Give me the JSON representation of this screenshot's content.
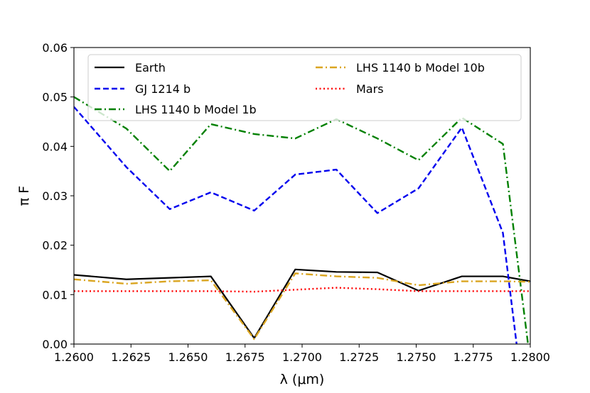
{
  "chart_data": {
    "type": "line",
    "xlabel": "λ (μm)",
    "ylabel": "π F",
    "xlim": [
      1.26,
      1.28
    ],
    "ylim": [
      0,
      0.06
    ],
    "xticks": [
      "1.2600",
      "1.2625",
      "1.2650",
      "1.2675",
      "1.2700",
      "1.2725",
      "1.2750",
      "1.2775",
      "1.2800"
    ],
    "yticks": [
      "0.00",
      "0.01",
      "0.02",
      "0.03",
      "0.04",
      "0.05",
      "0.06"
    ],
    "grid": false,
    "legend_position": "top",
    "x": [
      1.26,
      1.2623,
      1.2642,
      1.266,
      1.2679,
      1.2697,
      1.2715,
      1.2733,
      1.2751,
      1.277,
      1.2788,
      1.28
    ],
    "series": [
      {
        "name": "Earth",
        "color": "#000000",
        "style": "solid",
        "x": [
          1.26,
          1.2623,
          1.2642,
          1.266,
          1.2679,
          1.2697,
          1.2715,
          1.2733,
          1.2751,
          1.277,
          1.2788,
          1.28
        ],
        "values": [
          0.014,
          0.0131,
          0.0134,
          0.0137,
          0.0012,
          0.0151,
          0.0146,
          0.0145,
          0.0108,
          0.0137,
          0.0137,
          0.0127
        ]
      },
      {
        "name": "GJ 1214 b",
        "color": "#0000ee",
        "style": "dashed",
        "x": [
          1.26,
          1.2623,
          1.2642,
          1.266,
          1.2679,
          1.2697,
          1.2715,
          1.2733,
          1.2751,
          1.277,
          1.2788,
          1.2794
        ],
        "values": [
          0.048,
          0.0358,
          0.0273,
          0.0307,
          0.027,
          0.0343,
          0.0353,
          0.0265,
          0.0315,
          0.0438,
          0.0225,
          0.0
        ]
      },
      {
        "name": "LHS 1140 b Model 1b",
        "color": "#008000",
        "style": "dashdot",
        "x": [
          1.26,
          1.2623,
          1.2642,
          1.266,
          1.2679,
          1.2697,
          1.2715,
          1.2733,
          1.2751,
          1.277,
          1.2788,
          1.2799
        ],
        "values": [
          0.05,
          0.0436,
          0.035,
          0.0445,
          0.0425,
          0.0416,
          0.0455,
          0.0416,
          0.0372,
          0.0458,
          0.0405,
          0.0
        ]
      },
      {
        "name": "LHS 1140 b Model 10b",
        "color": "#daa520",
        "style": "dashdot",
        "x": [
          1.26,
          1.2623,
          1.2642,
          1.266,
          1.2679,
          1.2697,
          1.2715,
          1.2733,
          1.2751,
          1.277,
          1.2788,
          1.28
        ],
        "values": [
          0.0131,
          0.0122,
          0.0127,
          0.0129,
          0.001,
          0.0143,
          0.0137,
          0.0134,
          0.0119,
          0.0127,
          0.0127,
          0.0126
        ]
      },
      {
        "name": "Mars",
        "color": "#ff0000",
        "style": "dotted",
        "x": [
          1.26,
          1.2623,
          1.2642,
          1.266,
          1.2679,
          1.2697,
          1.2715,
          1.2733,
          1.2751,
          1.277,
          1.2788,
          1.28
        ],
        "values": [
          0.0107,
          0.0107,
          0.0107,
          0.0107,
          0.0106,
          0.011,
          0.0114,
          0.0111,
          0.0107,
          0.0107,
          0.0107,
          0.0107
        ]
      }
    ]
  }
}
